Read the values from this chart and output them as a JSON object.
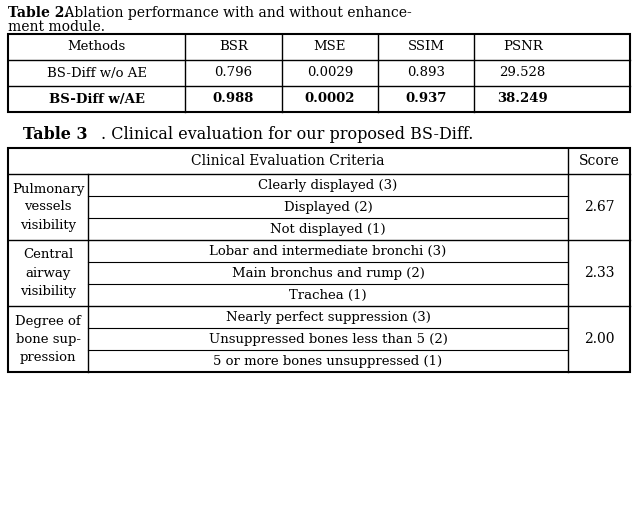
{
  "background_color": "#ffffff",
  "table2": {
    "title_bold": "Table 2.",
    "title_normal": " Ablation performance with and without enhance-",
    "title_line2": "ment module.",
    "headers": [
      "Methods",
      "BSR",
      "MSE",
      "SSIM",
      "PSNR"
    ],
    "rows": [
      [
        "BS-Diff w/o AE",
        "0.796",
        "0.0029",
        "0.893",
        "29.528"
      ],
      [
        "BS-Diff w/AE",
        "0.988",
        "0.0002",
        "0.937",
        "38.249"
      ]
    ],
    "bold_row": 1
  },
  "table3": {
    "title_bold": "Table 3",
    "title_normal": ". Clinical evaluation for our proposed BS-Diff.",
    "col1_header": "Clinical Evaluation Criteria",
    "col2_header": "Score",
    "sections": [
      {
        "row_label": "Pulmonary\nvessels\nvisibility",
        "criteria": [
          "Clearly displayed (3)",
          "Displayed (2)",
          "Not displayed (1)"
        ],
        "score": "2.67"
      },
      {
        "row_label": "Central\nairway\nvisibility",
        "criteria": [
          "Lobar and intermediate bronchi (3)",
          "Main bronchus and rump (2)",
          "Trachea (1)"
        ],
        "score": "2.33"
      },
      {
        "row_label": "Degree of\nbone sup-\npression",
        "criteria": [
          "Nearly perfect suppression (3)",
          "Unsuppressed bones less than 5 (2)",
          "5 or more bones unsuppressed (1)"
        ],
        "score": "2.00"
      }
    ]
  },
  "fs": 9.5,
  "tfs": 10.0
}
